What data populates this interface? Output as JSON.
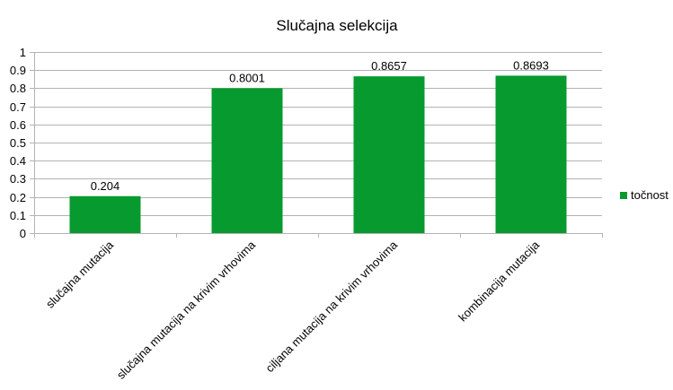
{
  "chart_data": {
    "type": "bar",
    "title": "Slučajna selekcija",
    "xlabel": "",
    "ylabel": "",
    "categories": [
      "slučajna mutacija",
      "slučajna mutacija na krivim vrhovima",
      "ciljana mutacija na krivim vrhovima",
      "kombinacija mutacija"
    ],
    "series": [
      {
        "name": "točnost",
        "color": "#079a2e",
        "values": [
          0.204,
          0.8001,
          0.8657,
          0.8693
        ],
        "labels": [
          "0.204",
          "0.8001",
          "0.8657",
          "0.8693"
        ]
      }
    ],
    "ylim": [
      0,
      1
    ],
    "yticks": [
      "0",
      "0.1",
      "0.2",
      "0.3",
      "0.4",
      "0.5",
      "0.6",
      "0.7",
      "0.8",
      "0.9",
      "1"
    ],
    "grid": true,
    "legend": "right"
  }
}
